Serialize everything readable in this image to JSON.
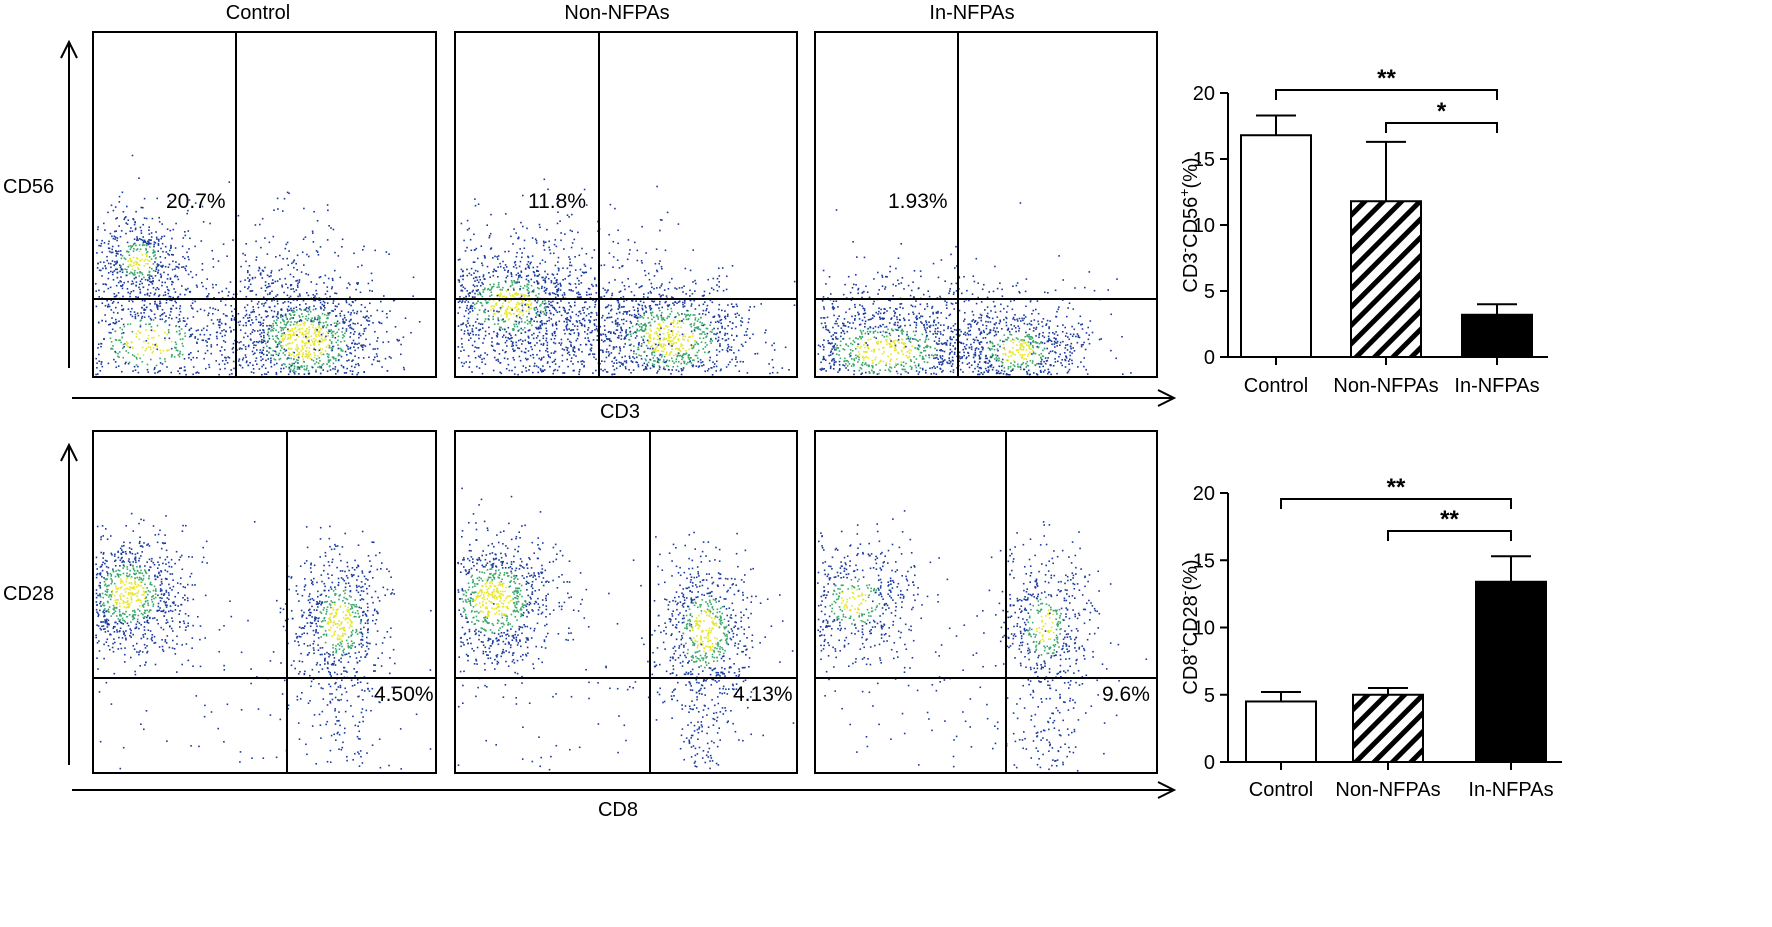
{
  "flow_rows": [
    {
      "y_axis_label": "CD56",
      "x_axis_label": "CD3",
      "panels": [
        {
          "title": "Control",
          "percent": "20.7%"
        },
        {
          "title": "Non-NFPAs",
          "percent": "11.8%"
        },
        {
          "title": "In-NFPAs",
          "percent": "1.93%"
        }
      ]
    },
    {
      "y_axis_label": "CD28",
      "x_axis_label": "CD8",
      "panels": [
        {
          "title": "",
          "percent": "4.50%"
        },
        {
          "title": "",
          "percent": "4.13%"
        },
        {
          "title": "",
          "percent": "9.6%"
        }
      ]
    }
  ],
  "scatter_colors": {
    "low": "#1a3a9c",
    "mid": "#3aa86b",
    "high": "#e6e62a"
  },
  "chart_data": [
    {
      "type": "bar",
      "categories": [
        "Control",
        "Non-NFPAs",
        "In-NFPAs"
      ],
      "values": [
        16.8,
        11.8,
        3.2
      ],
      "errors": [
        1.5,
        4.5,
        0.8
      ],
      "ylabel_parts": [
        {
          "t": "CD3"
        },
        {
          "t": "-",
          "sup": true
        },
        {
          "t": "CD56"
        },
        {
          "t": "+",
          "sup": true
        },
        {
          "t": "(%)"
        }
      ],
      "ylim": [
        0,
        20
      ],
      "yticks": [
        "0",
        "5",
        "10",
        "15",
        "20"
      ],
      "bar_fills": [
        "white",
        "hatch",
        "black"
      ],
      "significance": [
        {
          "from": 0,
          "to": 2,
          "label": "**"
        },
        {
          "from": 1,
          "to": 2,
          "label": "*"
        }
      ]
    },
    {
      "type": "bar",
      "categories": [
        "Control",
        "Non-NFPAs",
        "In-NFPAs"
      ],
      "values": [
        4.5,
        5.0,
        13.4
      ],
      "errors": [
        0.7,
        0.5,
        1.9
      ],
      "ylabel_parts": [
        {
          "t": "CD8"
        },
        {
          "t": "+",
          "sup": true
        },
        {
          "t": "CD28"
        },
        {
          "t": "-",
          "sup": true
        },
        {
          "t": "(%)"
        }
      ],
      "ylim": [
        0,
        20
      ],
      "yticks": [
        "0",
        "5",
        "10",
        "15",
        "20"
      ],
      "bar_fills": [
        "white",
        "hatch",
        "black"
      ],
      "significance": [
        {
          "from": 0,
          "to": 2,
          "label": "**"
        },
        {
          "from": 1,
          "to": 2,
          "label": "**"
        }
      ]
    }
  ]
}
